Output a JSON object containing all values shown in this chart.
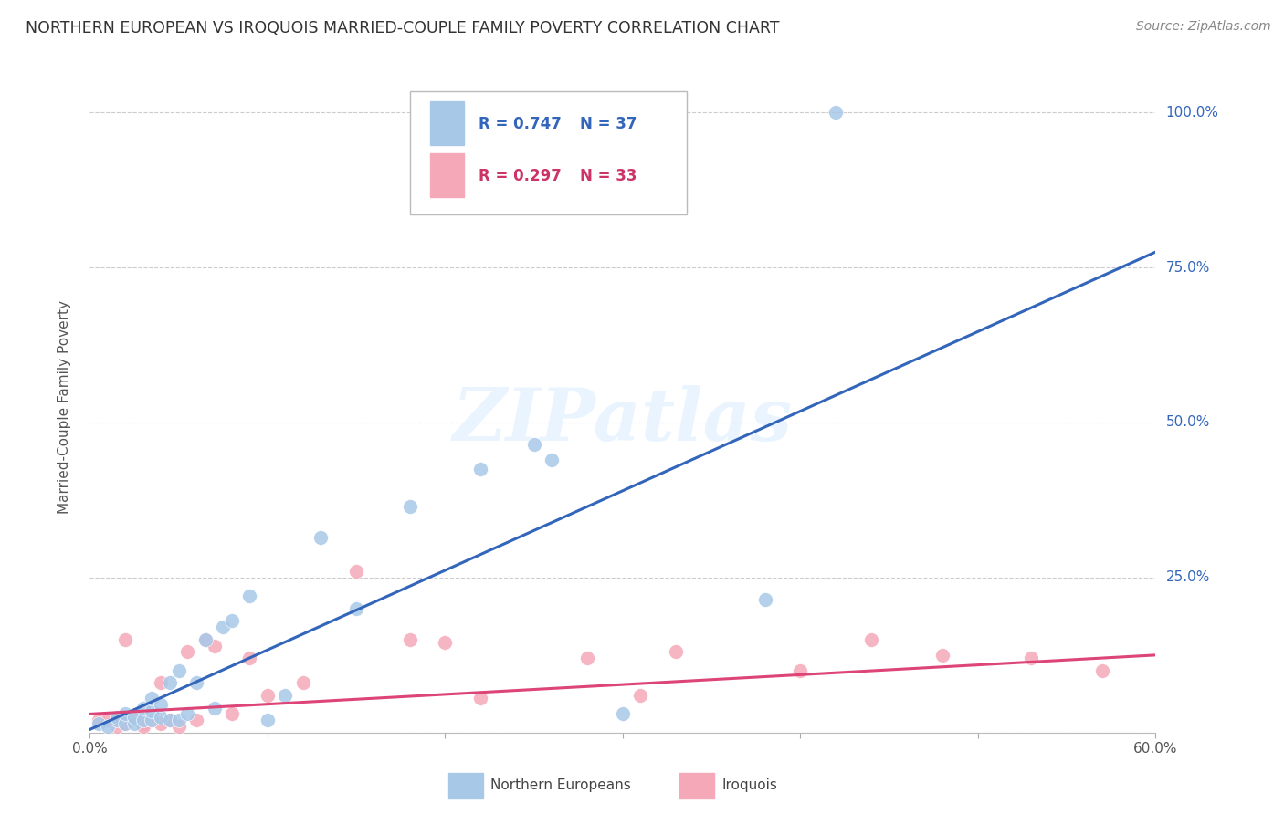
{
  "title": "NORTHERN EUROPEAN VS IROQUOIS MARRIED-COUPLE FAMILY POVERTY CORRELATION CHART",
  "source": "Source: ZipAtlas.com",
  "ylabel": "Married-Couple Family Poverty",
  "xlim": [
    0.0,
    0.6
  ],
  "ylim": [
    0.0,
    1.05
  ],
  "xticks": [
    0.0,
    0.1,
    0.2,
    0.3,
    0.4,
    0.5,
    0.6
  ],
  "xticklabels": [
    "0.0%",
    "",
    "",
    "",
    "",
    "",
    "60.0%"
  ],
  "yticks": [
    0.0,
    0.25,
    0.5,
    0.75,
    1.0
  ],
  "yticklabels": [
    "",
    "25.0%",
    "50.0%",
    "75.0%",
    "100.0%"
  ],
  "blue_r": "R = 0.747",
  "blue_n": "N = 37",
  "pink_r": "R = 0.297",
  "pink_n": "N = 33",
  "legend_label1": "Northern Europeans",
  "legend_label2": "Iroquois",
  "blue_color": "#A8C8E8",
  "pink_color": "#F4A8B8",
  "blue_line_color": "#3366BB",
  "pink_line_color": "#DD4477",
  "blue_text_color": "#3366BB",
  "pink_text_color": "#CC3366",
  "watermark_text": "ZIPatlas",
  "blue_scatter_x": [
    0.005,
    0.01,
    0.015,
    0.015,
    0.02,
    0.02,
    0.025,
    0.025,
    0.03,
    0.03,
    0.035,
    0.035,
    0.035,
    0.04,
    0.04,
    0.045,
    0.045,
    0.05,
    0.05,
    0.055,
    0.06,
    0.065,
    0.07,
    0.075,
    0.08,
    0.09,
    0.1,
    0.11,
    0.13,
    0.15,
    0.18,
    0.22,
    0.25,
    0.26,
    0.3,
    0.38,
    0.42
  ],
  "blue_scatter_y": [
    0.015,
    0.01,
    0.02,
    0.025,
    0.015,
    0.03,
    0.015,
    0.025,
    0.02,
    0.04,
    0.02,
    0.035,
    0.055,
    0.025,
    0.045,
    0.02,
    0.08,
    0.02,
    0.1,
    0.03,
    0.08,
    0.15,
    0.04,
    0.17,
    0.18,
    0.22,
    0.02,
    0.06,
    0.315,
    0.2,
    0.365,
    0.425,
    0.465,
    0.44,
    0.03,
    0.215,
    1.0
  ],
  "pink_scatter_x": [
    0.005,
    0.01,
    0.015,
    0.02,
    0.02,
    0.025,
    0.03,
    0.03,
    0.035,
    0.04,
    0.04,
    0.045,
    0.05,
    0.055,
    0.06,
    0.065,
    0.07,
    0.08,
    0.09,
    0.1,
    0.12,
    0.15,
    0.18,
    0.2,
    0.22,
    0.28,
    0.31,
    0.33,
    0.4,
    0.44,
    0.48,
    0.53,
    0.57
  ],
  "pink_scatter_y": [
    0.02,
    0.02,
    0.01,
    0.015,
    0.15,
    0.025,
    0.015,
    0.01,
    0.02,
    0.015,
    0.08,
    0.02,
    0.01,
    0.13,
    0.02,
    0.15,
    0.14,
    0.03,
    0.12,
    0.06,
    0.08,
    0.26,
    0.15,
    0.145,
    0.055,
    0.12,
    0.06,
    0.13,
    0.1,
    0.15,
    0.125,
    0.12,
    0.1
  ],
  "blue_trend_x": [
    0.0,
    0.6
  ],
  "blue_trend_y": [
    0.005,
    0.775
  ],
  "pink_trend_x": [
    0.0,
    0.6
  ],
  "pink_trend_y": [
    0.03,
    0.125
  ],
  "background_color": "#FFFFFF",
  "grid_color": "#CCCCCC"
}
